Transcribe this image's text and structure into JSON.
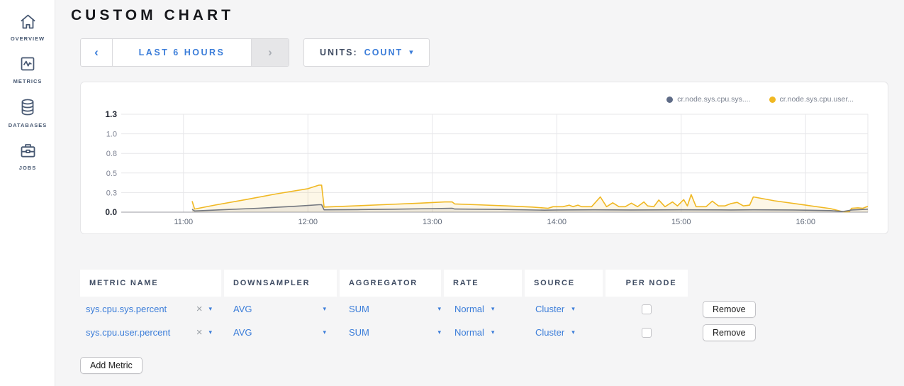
{
  "sidebar": {
    "items": [
      {
        "label": "OVERVIEW",
        "icon": "home-icon"
      },
      {
        "label": "METRICS",
        "icon": "metrics-icon"
      },
      {
        "label": "DATABASES",
        "icon": "database-icon"
      },
      {
        "label": "JOBS",
        "icon": "briefcase-icon"
      }
    ]
  },
  "header": {
    "title": "CUSTOM CHART"
  },
  "toolbar": {
    "time_window": {
      "prev_icon": "‹",
      "label": "LAST 6 HOURS",
      "next_icon": "›"
    },
    "units": {
      "label": "UNITS:",
      "value": "COUNT",
      "caret_icon": "▾"
    }
  },
  "chart_data": {
    "type": "line",
    "title": "",
    "xlabel": "",
    "ylabel": "",
    "x_unit": "time-of-day (decimal hours)",
    "xlim": [
      10.5,
      16.5
    ],
    "ylim": [
      0,
      1.25
    ],
    "grid": true,
    "right_edge_gridline": true,
    "legend_position": "top-right",
    "xticks": [
      {
        "v": 11,
        "label": "11:00"
      },
      {
        "v": 12,
        "label": "12:00"
      },
      {
        "v": 13,
        "label": "13:00"
      },
      {
        "v": 14,
        "label": "14:00"
      },
      {
        "v": 15,
        "label": "15:00"
      },
      {
        "v": 16,
        "label": "16:00"
      }
    ],
    "yticks": [
      {
        "v": 0,
        "label": "0.0"
      },
      {
        "v": 0.25,
        "label": "0.3"
      },
      {
        "v": 0.5,
        "label": "0.5"
      },
      {
        "v": 0.75,
        "label": "0.8"
      },
      {
        "v": 1.0,
        "label": "1.0"
      },
      {
        "v": 1.25,
        "label": "1.3"
      }
    ],
    "series": [
      {
        "name": "cr.node.sys.cpu.user...",
        "color": "#f0b823",
        "fill": "rgba(240,184,35,0.11)",
        "points": [
          [
            11.07,
            0.14
          ],
          [
            11.09,
            0.04
          ],
          [
            11.25,
            0.09
          ],
          [
            11.5,
            0.16
          ],
          [
            11.75,
            0.235
          ],
          [
            12.0,
            0.3
          ],
          [
            12.09,
            0.345
          ],
          [
            12.11,
            0.345
          ],
          [
            12.13,
            0.065
          ],
          [
            12.3,
            0.075
          ],
          [
            12.6,
            0.095
          ],
          [
            12.9,
            0.115
          ],
          [
            13.1,
            0.13
          ],
          [
            13.16,
            0.13
          ],
          [
            13.18,
            0.105
          ],
          [
            13.35,
            0.095
          ],
          [
            13.6,
            0.08
          ],
          [
            13.8,
            0.065
          ],
          [
            13.93,
            0.05
          ],
          [
            13.97,
            0.07
          ],
          [
            14.05,
            0.07
          ],
          [
            14.1,
            0.09
          ],
          [
            14.13,
            0.07
          ],
          [
            14.17,
            0.09
          ],
          [
            14.2,
            0.07
          ],
          [
            14.28,
            0.07
          ],
          [
            14.35,
            0.195
          ],
          [
            14.4,
            0.07
          ],
          [
            14.45,
            0.12
          ],
          [
            14.5,
            0.07
          ],
          [
            14.55,
            0.07
          ],
          [
            14.6,
            0.115
          ],
          [
            14.65,
            0.07
          ],
          [
            14.7,
            0.13
          ],
          [
            14.73,
            0.08
          ],
          [
            14.78,
            0.07
          ],
          [
            14.82,
            0.155
          ],
          [
            14.87,
            0.07
          ],
          [
            14.93,
            0.13
          ],
          [
            14.97,
            0.08
          ],
          [
            15.02,
            0.16
          ],
          [
            15.05,
            0.08
          ],
          [
            15.08,
            0.225
          ],
          [
            15.12,
            0.07
          ],
          [
            15.2,
            0.07
          ],
          [
            15.25,
            0.14
          ],
          [
            15.3,
            0.08
          ],
          [
            15.35,
            0.08
          ],
          [
            15.4,
            0.11
          ],
          [
            15.45,
            0.125
          ],
          [
            15.5,
            0.08
          ],
          [
            15.55,
            0.09
          ],
          [
            15.58,
            0.195
          ],
          [
            15.75,
            0.145
          ],
          [
            16.0,
            0.09
          ],
          [
            16.2,
            0.045
          ],
          [
            16.3,
            0.005
          ],
          [
            16.35,
            0.005
          ],
          [
            16.37,
            0.05
          ],
          [
            16.42,
            0.055
          ],
          [
            16.46,
            0.05
          ],
          [
            16.5,
            0.075
          ]
        ]
      },
      {
        "name": "cr.node.sys.cpu.sys....",
        "color": "#73777f",
        "fill": "rgba(115,119,127,0.10)",
        "points": [
          [
            11.07,
            0.035
          ],
          [
            11.09,
            0.015
          ],
          [
            11.3,
            0.03
          ],
          [
            11.6,
            0.05
          ],
          [
            11.9,
            0.075
          ],
          [
            12.09,
            0.095
          ],
          [
            12.11,
            0.095
          ],
          [
            12.13,
            0.03
          ],
          [
            12.4,
            0.033
          ],
          [
            12.7,
            0.038
          ],
          [
            13.0,
            0.045
          ],
          [
            13.16,
            0.05
          ],
          [
            13.18,
            0.04
          ],
          [
            13.5,
            0.035
          ],
          [
            13.9,
            0.025
          ],
          [
            14.0,
            0.028
          ],
          [
            14.3,
            0.03
          ],
          [
            14.6,
            0.028
          ],
          [
            15.0,
            0.03
          ],
          [
            15.4,
            0.028
          ],
          [
            15.58,
            0.03
          ],
          [
            15.9,
            0.028
          ],
          [
            16.2,
            0.02
          ],
          [
            16.3,
            0.008
          ],
          [
            16.37,
            0.028
          ],
          [
            16.5,
            0.038
          ]
        ]
      }
    ],
    "legend": [
      {
        "label": "cr.node.sys.cpu.sys....",
        "dot_color": "#5f6c87"
      },
      {
        "label": "cr.node.sys.cpu.user...",
        "dot_color": "#f0b823"
      }
    ]
  },
  "table": {
    "columns": [
      "METRIC NAME",
      "DOWNSAMPLER",
      "AGGREGATOR",
      "RATE",
      "SOURCE",
      "PER NODE"
    ],
    "remove_label": "Remove",
    "clear_icon": "×",
    "caret_icon": "▾",
    "rows": [
      {
        "metric": "sys.cpu.sys.percent",
        "downsampler": "AVG",
        "aggregator": "SUM",
        "rate": "Normal",
        "source": "Cluster",
        "per_node": false
      },
      {
        "metric": "sys.cpu.user.percent",
        "downsampler": "AVG",
        "aggregator": "SUM",
        "rate": "Normal",
        "source": "Cluster",
        "per_node": false
      }
    ],
    "add_metric_label": "Add Metric"
  },
  "colors": {
    "accent_blue": "#3b7dd9",
    "slate": "#475872",
    "series_user_yellow": "#f0b823",
    "series_sys_gray": "#73777f",
    "page_bg": "#f5f5f6",
    "panel_bg": "#ffffff"
  }
}
